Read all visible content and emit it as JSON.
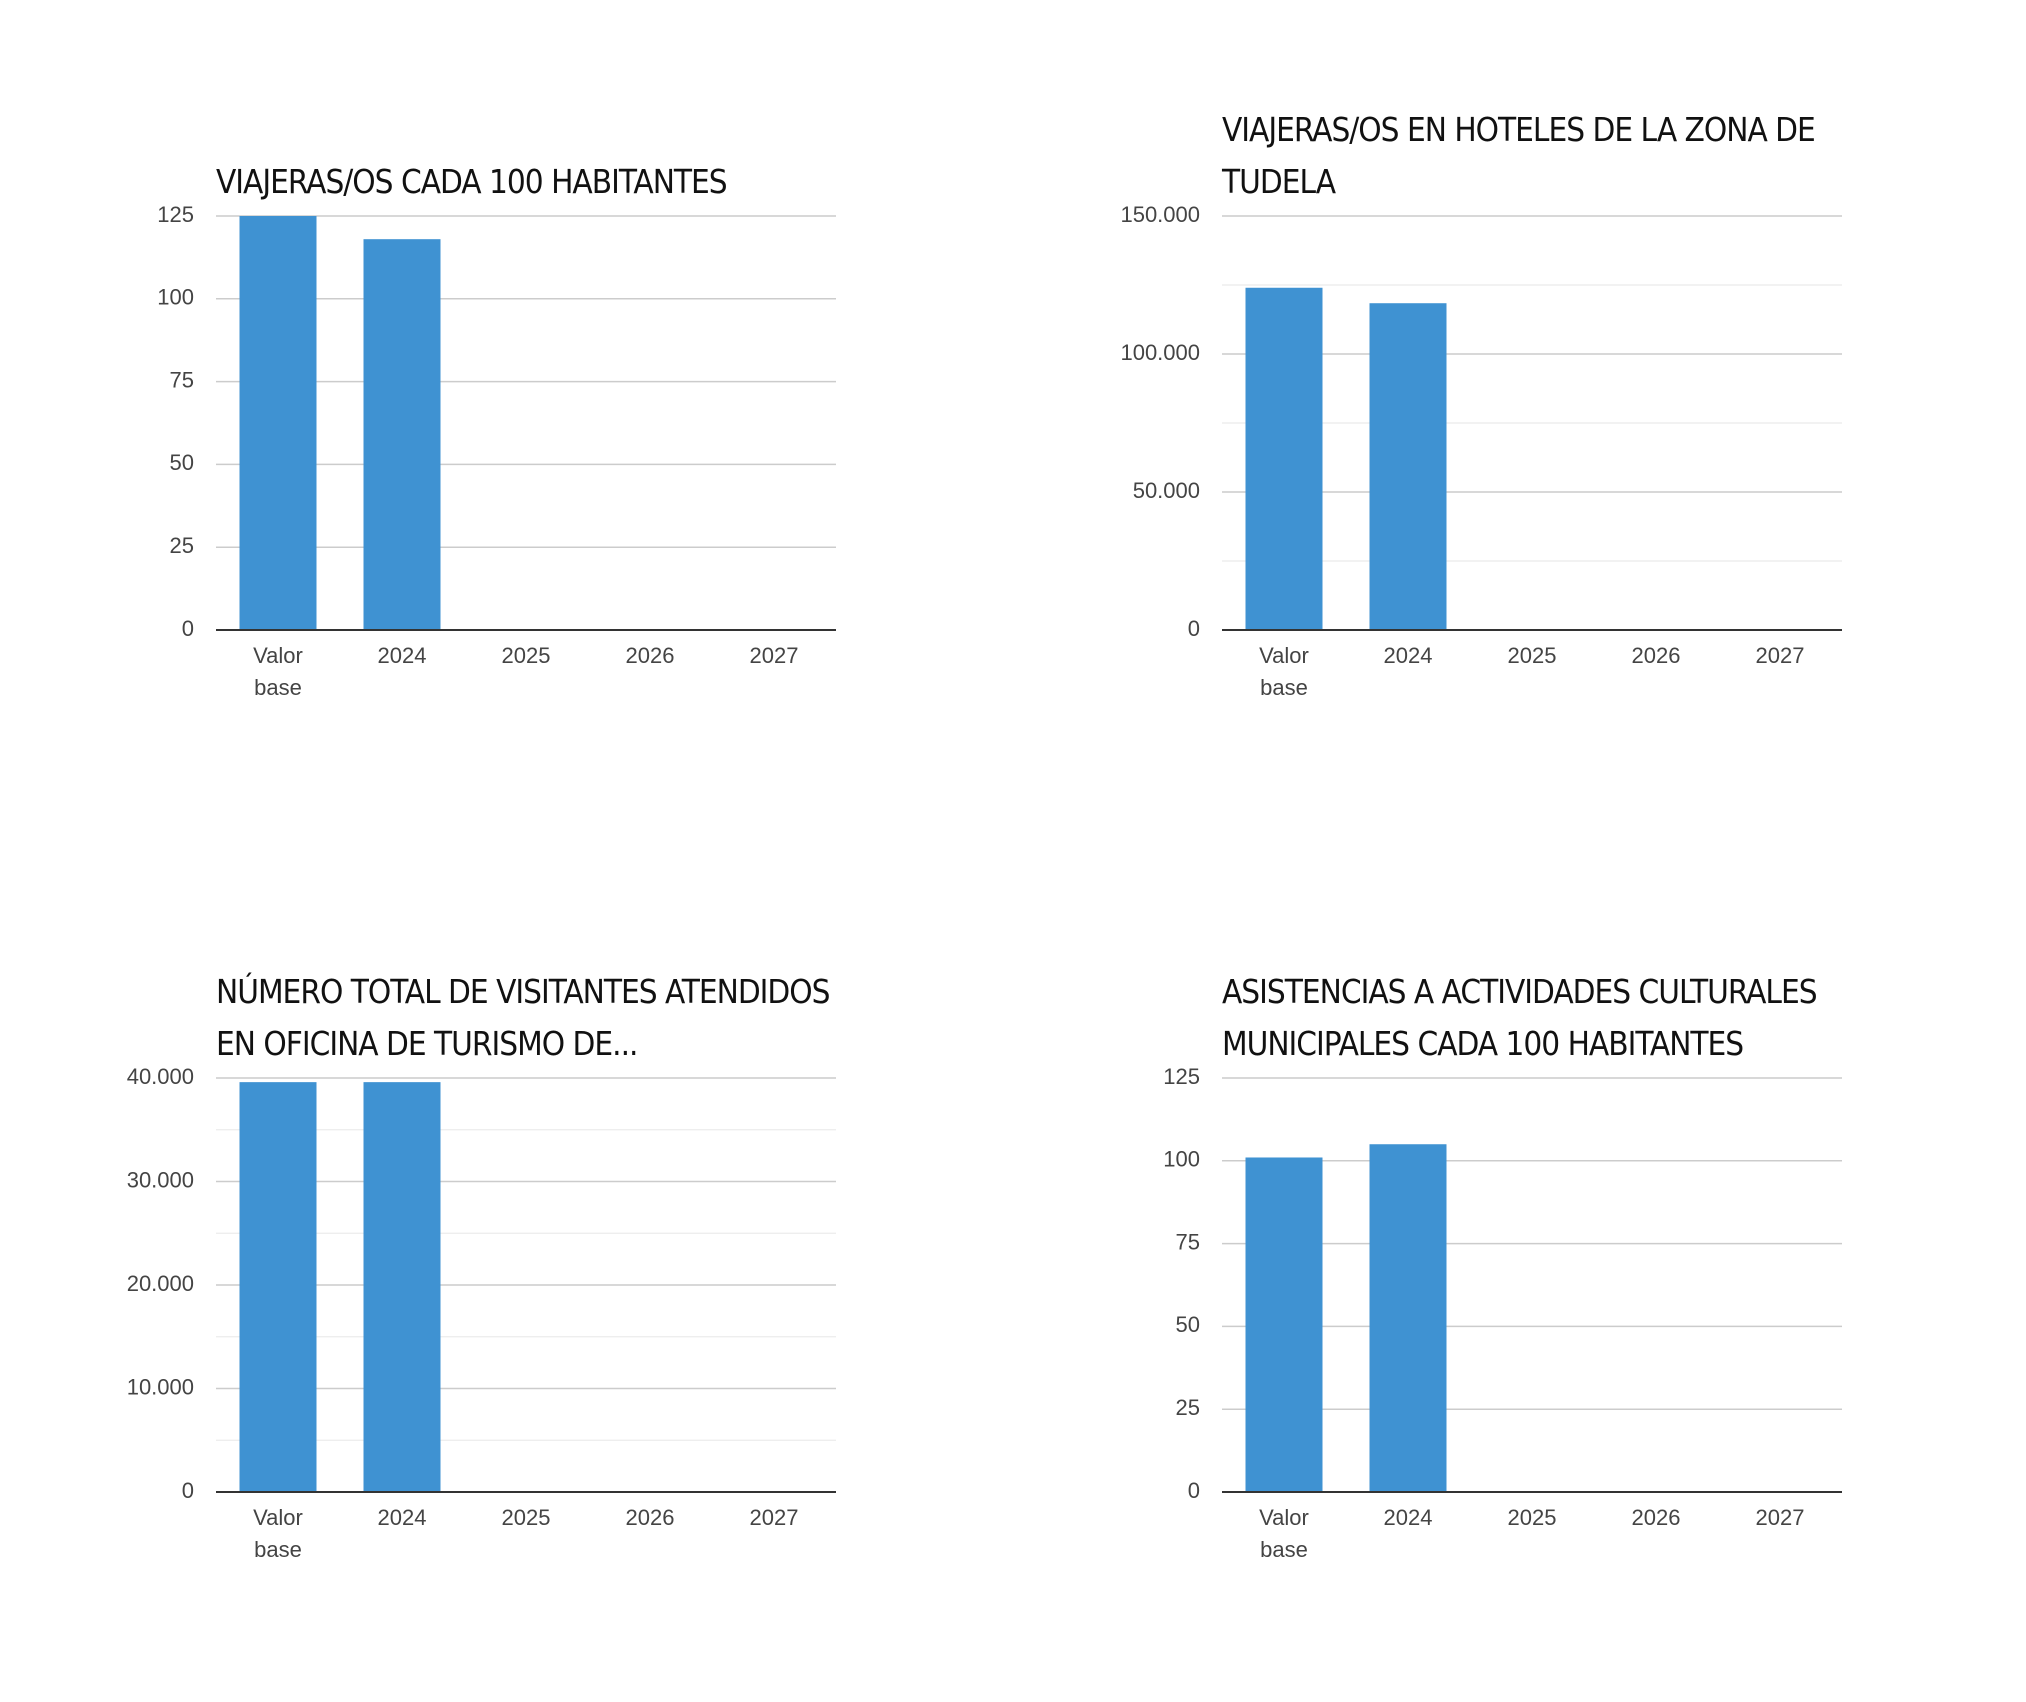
{
  "chart_data": [
    {
      "type": "bar",
      "title": "VIAJERAS/OS CADA 100 HABITANTES",
      "categories": [
        "Valor base",
        "2024",
        "2025",
        "2026",
        "2027"
      ],
      "values": [
        125,
        118,
        null,
        null,
        null
      ],
      "color": "#3f92d2",
      "ylim": [
        0,
        125
      ],
      "yticks": [
        0,
        25,
        50,
        75,
        100,
        125
      ],
      "grid": true
    },
    {
      "type": "bar",
      "title": "VIAJERAS/OS EN HOTELES DE LA ZONA DE TUDELA",
      "categories": [
        "Valor base",
        "2024",
        "2025",
        "2026",
        "2027"
      ],
      "values": [
        124000,
        118400,
        null,
        null,
        null
      ],
      "color": "#3f92d2",
      "ylim": [
        0,
        150000
      ],
      "yticks": [
        0,
        {
          "value": 50000,
          "label": "50.000"
        },
        {
          "value": 100000,
          "label": "100.000"
        },
        {
          "value": 150000,
          "label": "150.000"
        }
      ],
      "minor_yticks": [
        25000,
        75000,
        125000
      ],
      "grid": true
    },
    {
      "type": "bar",
      "title": "NÚMERO TOTAL DE VISITANTES ATENDIDOS EN OFICINA DE TURISMO DE...",
      "categories": [
        "Valor base",
        "2024",
        "2025",
        "2026",
        "2027"
      ],
      "values": [
        39600,
        39600,
        null,
        null,
        null
      ],
      "color": "#3f92d2",
      "ylim": [
        0,
        40000
      ],
      "yticks": [
        0,
        {
          "value": 10000,
          "label": "10.000"
        },
        {
          "value": 20000,
          "label": "20.000"
        },
        {
          "value": 30000,
          "label": "30.000"
        },
        {
          "value": 40000,
          "label": "40.000"
        }
      ],
      "minor_yticks": [
        5000,
        15000,
        25000,
        35000
      ],
      "grid": true
    },
    {
      "type": "bar",
      "title": "ASISTENCIAS A ACTIVIDADES CULTURALES MUNICIPALES CADA 100 HABITANTES",
      "categories": [
        "Valor base",
        "2024",
        "2025",
        "2026",
        "2027"
      ],
      "values": [
        101,
        105,
        null,
        null,
        null
      ],
      "color": "#3f92d2",
      "ylim": [
        0,
        125
      ],
      "yticks": [
        0,
        25,
        50,
        75,
        100,
        125
      ],
      "grid": true
    }
  ]
}
